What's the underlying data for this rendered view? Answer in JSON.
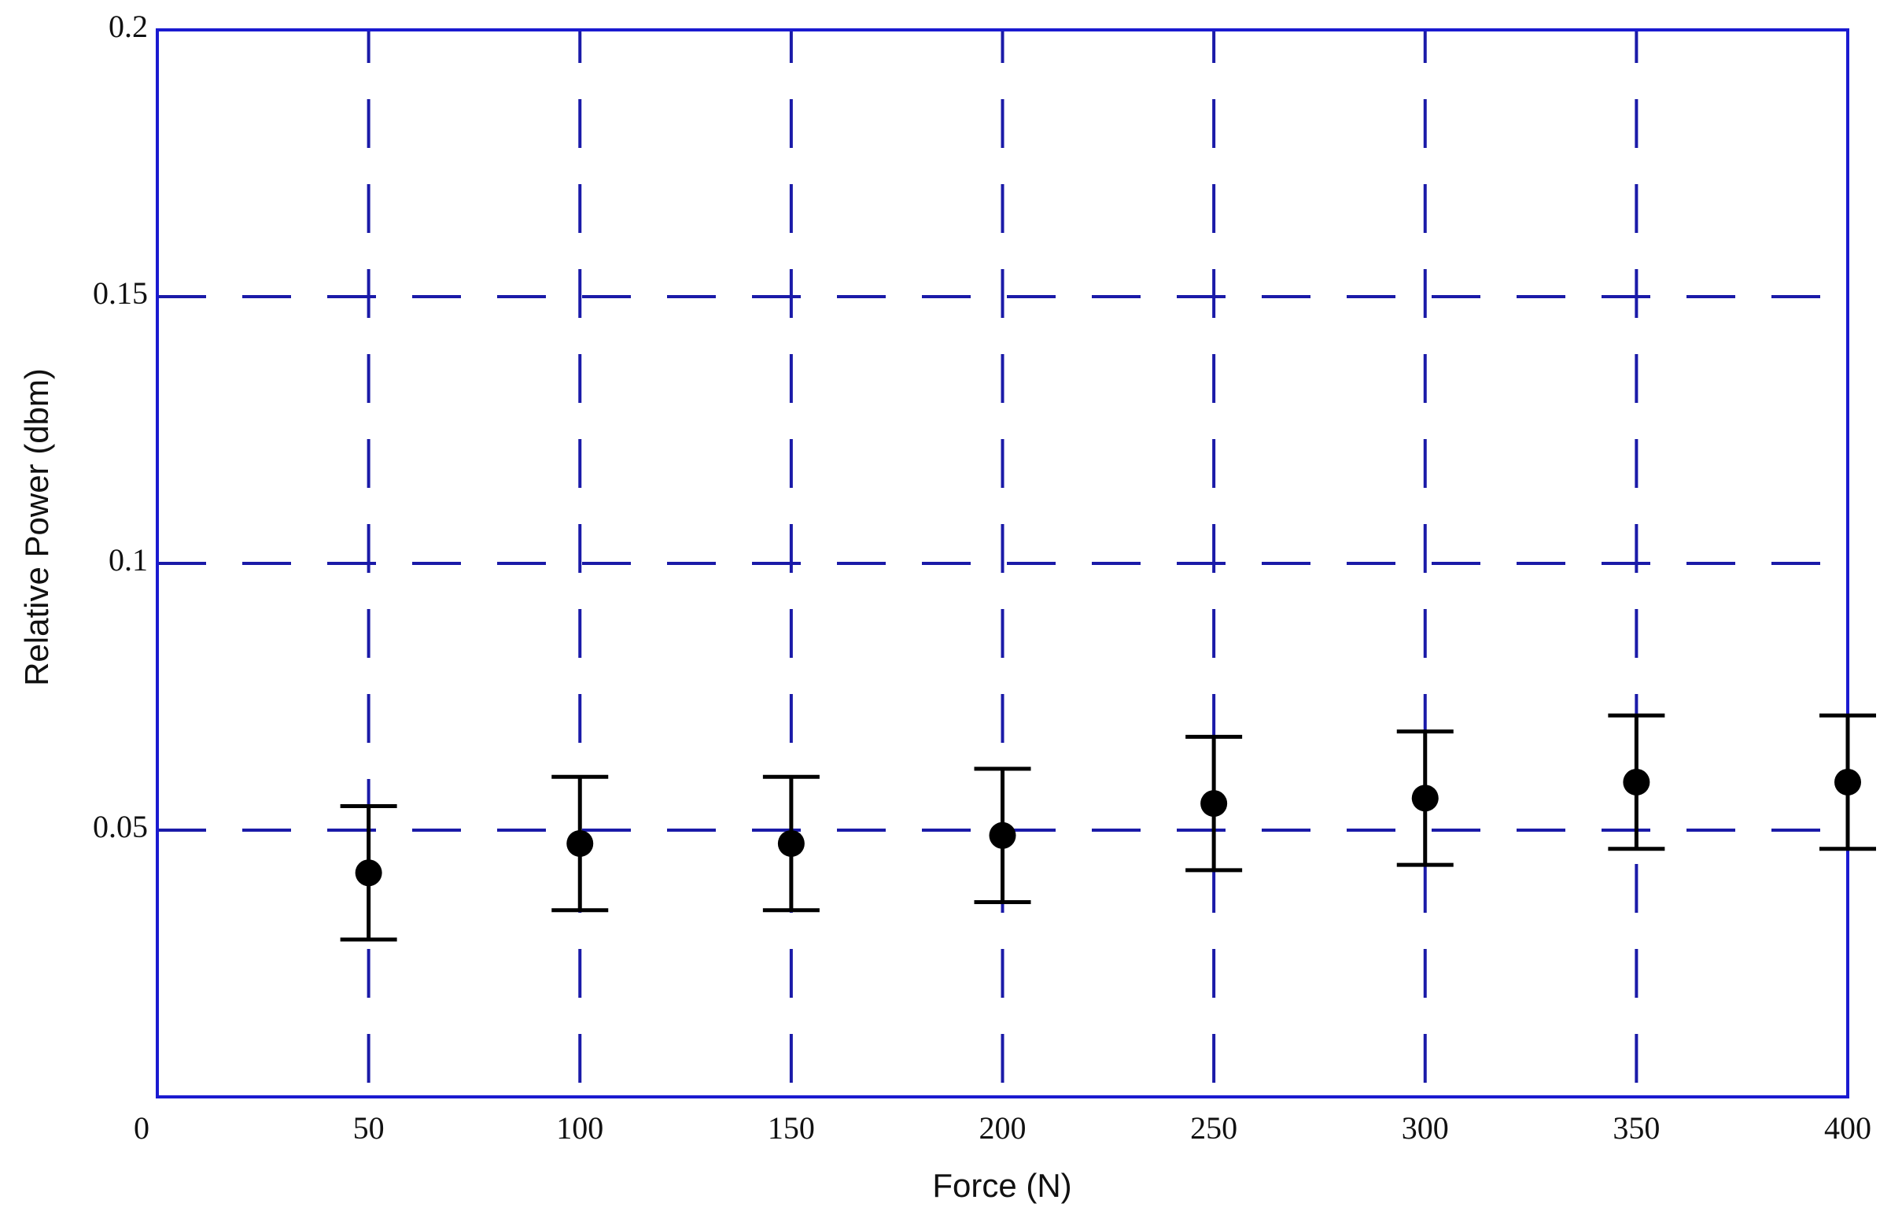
{
  "chart_data": {
    "type": "errorbar",
    "x_label": "Force (N)",
    "y_label": "Relative Power (dbm)",
    "x": [
      50,
      100,
      150,
      200,
      250,
      300,
      350,
      400
    ],
    "values": [
      0.042,
      0.0475,
      0.0475,
      0.049,
      0.055,
      0.056,
      0.059,
      0.059
    ],
    "errors": [
      0.0125,
      0.0125,
      0.0125,
      0.0125,
      0.0125,
      0.0125,
      0.0125,
      0.0125
    ],
    "color": "#000000",
    "grid_color": "#1a1aa8",
    "axis_color": "#1a1ad0",
    "xlim": [
      0,
      400
    ],
    "ylim": [
      0,
      0.2
    ],
    "xticks": [
      0,
      50,
      100,
      150,
      200,
      250,
      300,
      350,
      400
    ],
    "yticks": [
      0.05,
      0.1,
      0.15,
      0.2
    ],
    "grid": true
  }
}
